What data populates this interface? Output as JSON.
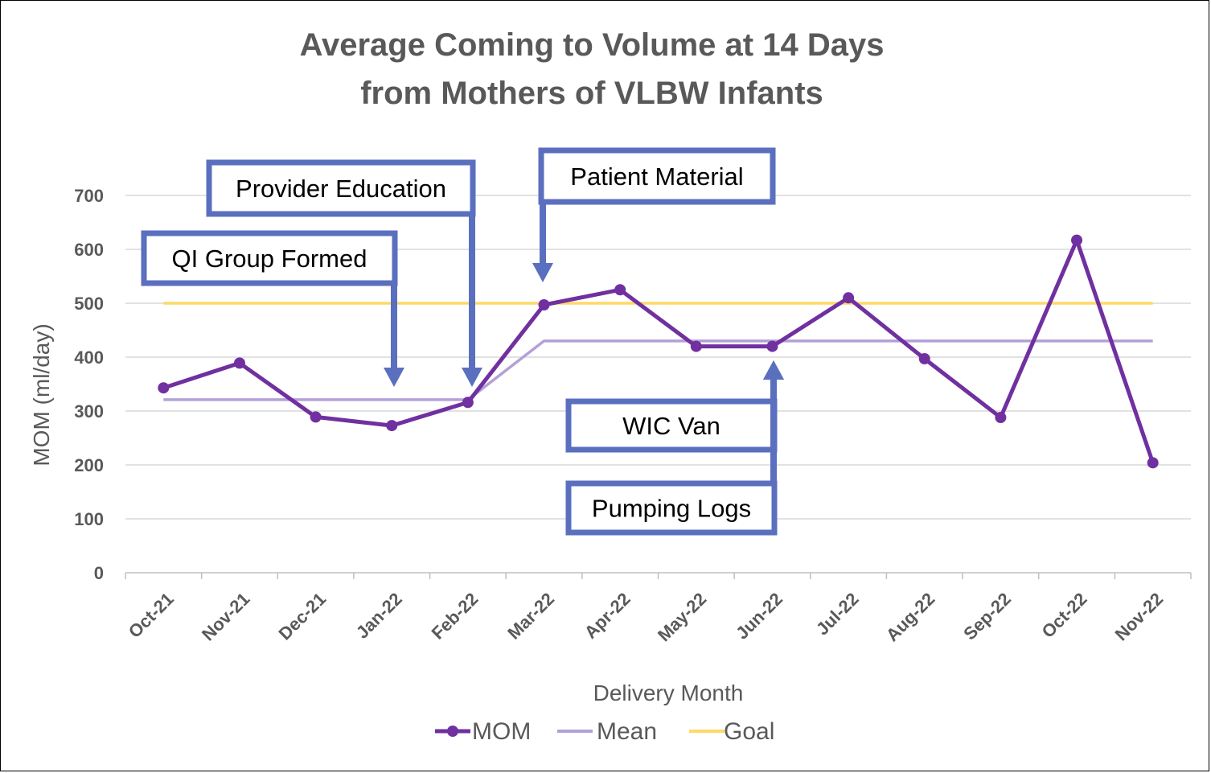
{
  "chart_data": {
    "type": "line",
    "title": [
      "Average Coming to Volume at 14 Days",
      "from Mothers of VLBW Infants"
    ],
    "xlabel": "Delivery Month",
    "ylabel": "MOM (ml/day)",
    "ylim": [
      0,
      700
    ],
    "yticks": [
      0,
      100,
      200,
      300,
      400,
      500,
      600,
      700
    ],
    "grid": true,
    "legend_position": "bottom",
    "categories": [
      "Oct-21",
      "Nov-21",
      "Dec-21",
      "Jan-22",
      "Feb-22",
      "Mar-22",
      "Apr-22",
      "May-22",
      "Jun-22",
      "Jul-22",
      "Aug-22",
      "Sep-22",
      "Oct-22",
      "Nov-22"
    ],
    "series": [
      {
        "name": "MOM",
        "color": "#7030A0",
        "markers": true,
        "values": [
          343,
          389,
          289,
          273,
          316,
          497,
          525,
          420,
          420,
          510,
          397,
          288,
          617,
          204
        ]
      },
      {
        "name": "Mean",
        "color": "#B4A0D8",
        "markers": false,
        "values": [
          321,
          321,
          321,
          321,
          321,
          430,
          430,
          430,
          430,
          430,
          430,
          430,
          430,
          430
        ]
      },
      {
        "name": "Goal",
        "color": "#FFD966",
        "markers": false,
        "values": [
          500,
          500,
          500,
          500,
          500,
          500,
          500,
          500,
          500,
          500,
          500,
          500,
          500,
          500
        ]
      }
    ],
    "annotations": [
      {
        "text": "QI Group Formed",
        "category": "Jan-22",
        "arrow": "down"
      },
      {
        "text": "Provider Education",
        "category": "Feb-22",
        "arrow": "down"
      },
      {
        "text": "Patient Material",
        "category": "Mar-22",
        "arrow": "down"
      },
      {
        "text": "WIC Van",
        "category": "Jun-22",
        "arrow": "up"
      },
      {
        "text": "Pumping Logs",
        "category": "Jun-22",
        "arrow": "up"
      }
    ],
    "annotation_color": "#5B6FBF"
  }
}
